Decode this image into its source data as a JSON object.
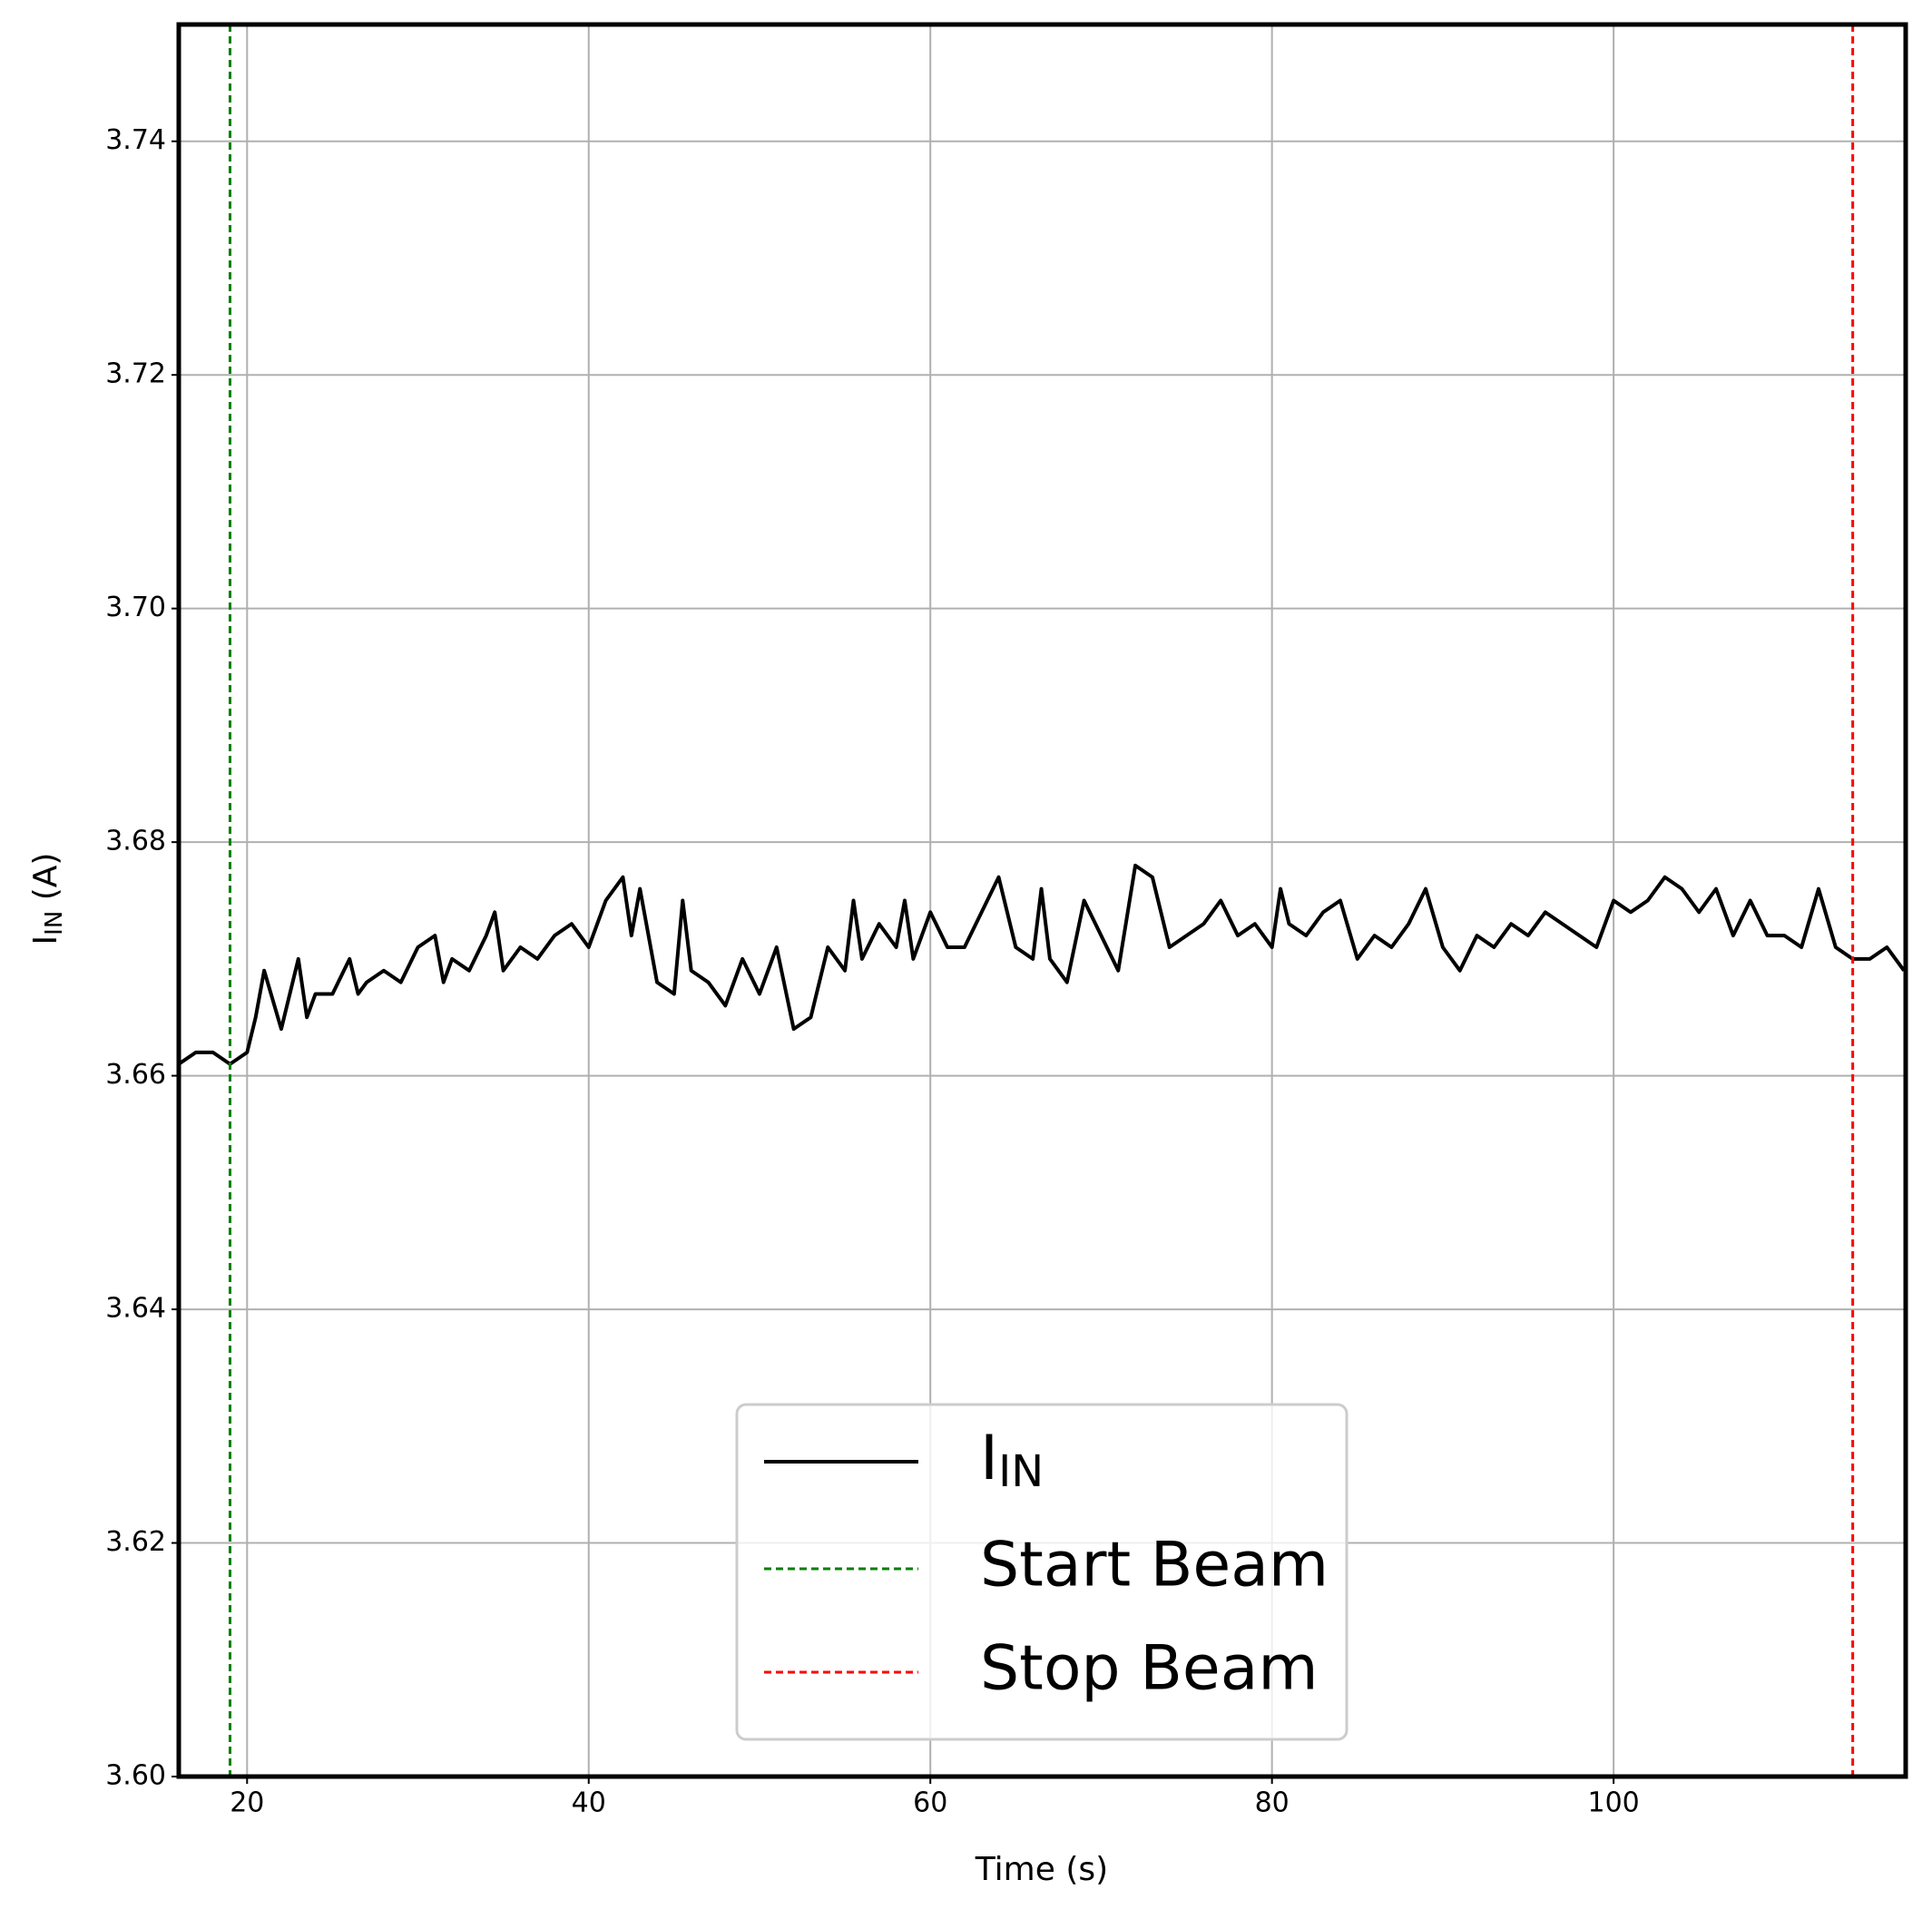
{
  "chart_data": {
    "type": "line",
    "xlabel": "Time (s)",
    "ylabel": "I",
    "ylabel_sub": "IN",
    "ylabel_rest": " (A)",
    "xlim": [
      16,
      117.1
    ],
    "ylim": [
      3.6,
      3.75
    ],
    "xticks": [
      20,
      40,
      60,
      80,
      100
    ],
    "yticks": [
      {
        "value": 3.6,
        "label": "3.60"
      },
      3.62,
      3.64,
      3.66,
      3.68,
      {
        "value": 3.7,
        "label": "3.70"
      },
      3.72,
      3.74
    ],
    "grid": true,
    "legend": "lower center",
    "x": [
      16,
      17,
      18,
      19,
      20,
      20.5,
      21,
      22,
      23,
      23.5,
      24,
      25,
      26,
      26.5,
      27,
      28,
      29,
      30,
      31,
      31.5,
      32,
      33,
      34,
      34.5,
      35,
      36,
      37,
      38,
      39,
      40,
      41,
      42,
      42.5,
      43,
      44,
      45,
      45.5,
      46,
      47,
      48,
      49,
      50,
      51,
      52,
      53,
      54,
      55,
      55.5,
      56,
      57,
      58,
      58.5,
      59,
      60,
      61,
      62,
      63,
      64,
      65,
      66,
      66.5,
      67,
      68,
      69,
      70,
      71,
      72,
      73,
      74,
      75,
      76,
      77,
      78,
      79,
      80,
      80.5,
      81,
      82,
      83,
      84,
      85,
      86,
      87,
      88,
      89,
      90,
      91,
      92,
      93,
      94,
      95,
      96,
      97,
      98,
      99,
      100,
      101,
      102,
      103,
      104,
      105,
      106,
      107,
      108,
      109,
      110,
      111,
      112,
      113,
      114,
      115,
      116,
      117
    ],
    "series": [
      {
        "name": "I",
        "name_sub": "IN",
        "color": "#000000",
        "values": [
          3.661,
          3.662,
          3.662,
          3.661,
          3.662,
          3.665,
          3.669,
          3.664,
          3.67,
          3.665,
          3.667,
          3.667,
          3.67,
          3.667,
          3.668,
          3.669,
          3.668,
          3.671,
          3.672,
          3.668,
          3.67,
          3.669,
          3.672,
          3.674,
          3.669,
          3.671,
          3.67,
          3.672,
          3.673,
          3.671,
          3.675,
          3.677,
          3.672,
          3.676,
          3.668,
          3.667,
          3.675,
          3.669,
          3.668,
          3.666,
          3.67,
          3.667,
          3.671,
          3.664,
          3.665,
          3.671,
          3.669,
          3.675,
          3.67,
          3.673,
          3.671,
          3.675,
          3.67,
          3.674,
          3.671,
          3.671,
          3.674,
          3.677,
          3.671,
          3.67,
          3.676,
          3.67,
          3.668,
          3.675,
          3.672,
          3.669,
          3.678,
          3.677,
          3.671,
          3.672,
          3.673,
          3.675,
          3.672,
          3.673,
          3.671,
          3.676,
          3.673,
          3.672,
          3.674,
          3.675,
          3.67,
          3.672,
          3.671,
          3.673,
          3.676,
          3.671,
          3.669,
          3.672,
          3.671,
          3.673,
          3.672,
          3.674,
          3.673,
          3.672,
          3.671,
          3.675,
          3.674,
          3.675,
          3.677,
          3.676,
          3.674,
          3.676,
          3.672,
          3.675,
          3.672,
          3.672,
          3.671,
          3.676,
          3.671,
          3.67,
          3.67,
          3.671,
          3.669
        ]
      }
    ],
    "vlines": [
      {
        "name": "Start Beam",
        "x": 19,
        "color": "#008000"
      },
      {
        "name": "Stop Beam",
        "x": 114,
        "color": "#ff0000"
      }
    ]
  }
}
